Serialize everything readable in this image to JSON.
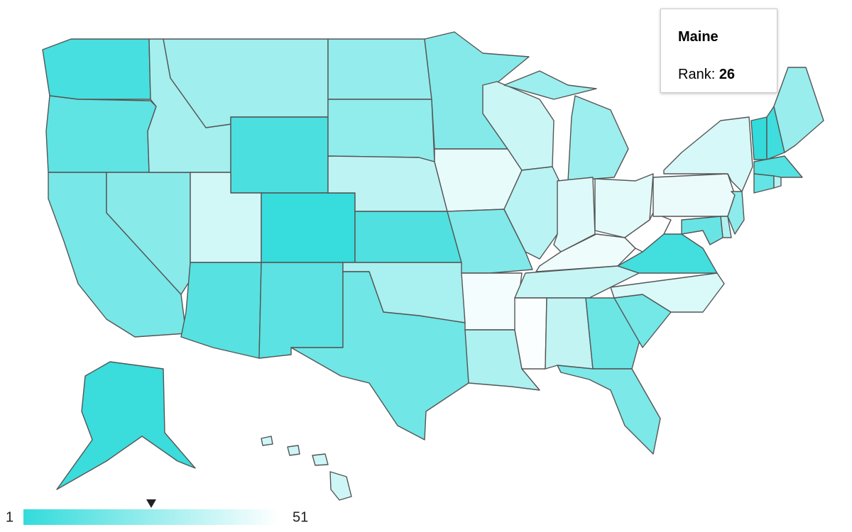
{
  "tooltip": {
    "title": "Maine",
    "label": "Rank:",
    "value": 26
  },
  "legend": {
    "min": 1,
    "max": 51,
    "color_min": "#33dbdb",
    "color_max": "#ffffff"
  },
  "states": {
    "WA": 6,
    "OR": 12,
    "CA": 18,
    "NV": 22,
    "ID": 29,
    "MT": 28,
    "WY": 7,
    "UT": 40,
    "CO": 2,
    "AZ": 10,
    "NM": 11,
    "ND": 25,
    "SD": 24,
    "NE": 35,
    "KS": 8,
    "OK": 30,
    "TX": 16,
    "MN": 21,
    "IA": 45,
    "MO": 20,
    "AR": 48,
    "LA": 31,
    "WI": 38,
    "IL": 34,
    "MI": 27,
    "IN": 43,
    "OH": 44,
    "KY": 47,
    "TN": 37,
    "MS": 50,
    "AL": 36,
    "GA": 15,
    "FL": 19,
    "SC": 17,
    "NC": 42,
    "VA": 5,
    "WV": 51,
    "PA": 46,
    "NY": 41,
    "VT": 1,
    "NH": 4,
    "ME": 26,
    "MA": 9,
    "CT": 13,
    "RI": 33,
    "NJ": 23,
    "DE": 32,
    "MD": 14,
    "AK": 3,
    "HI": 39
  }
}
